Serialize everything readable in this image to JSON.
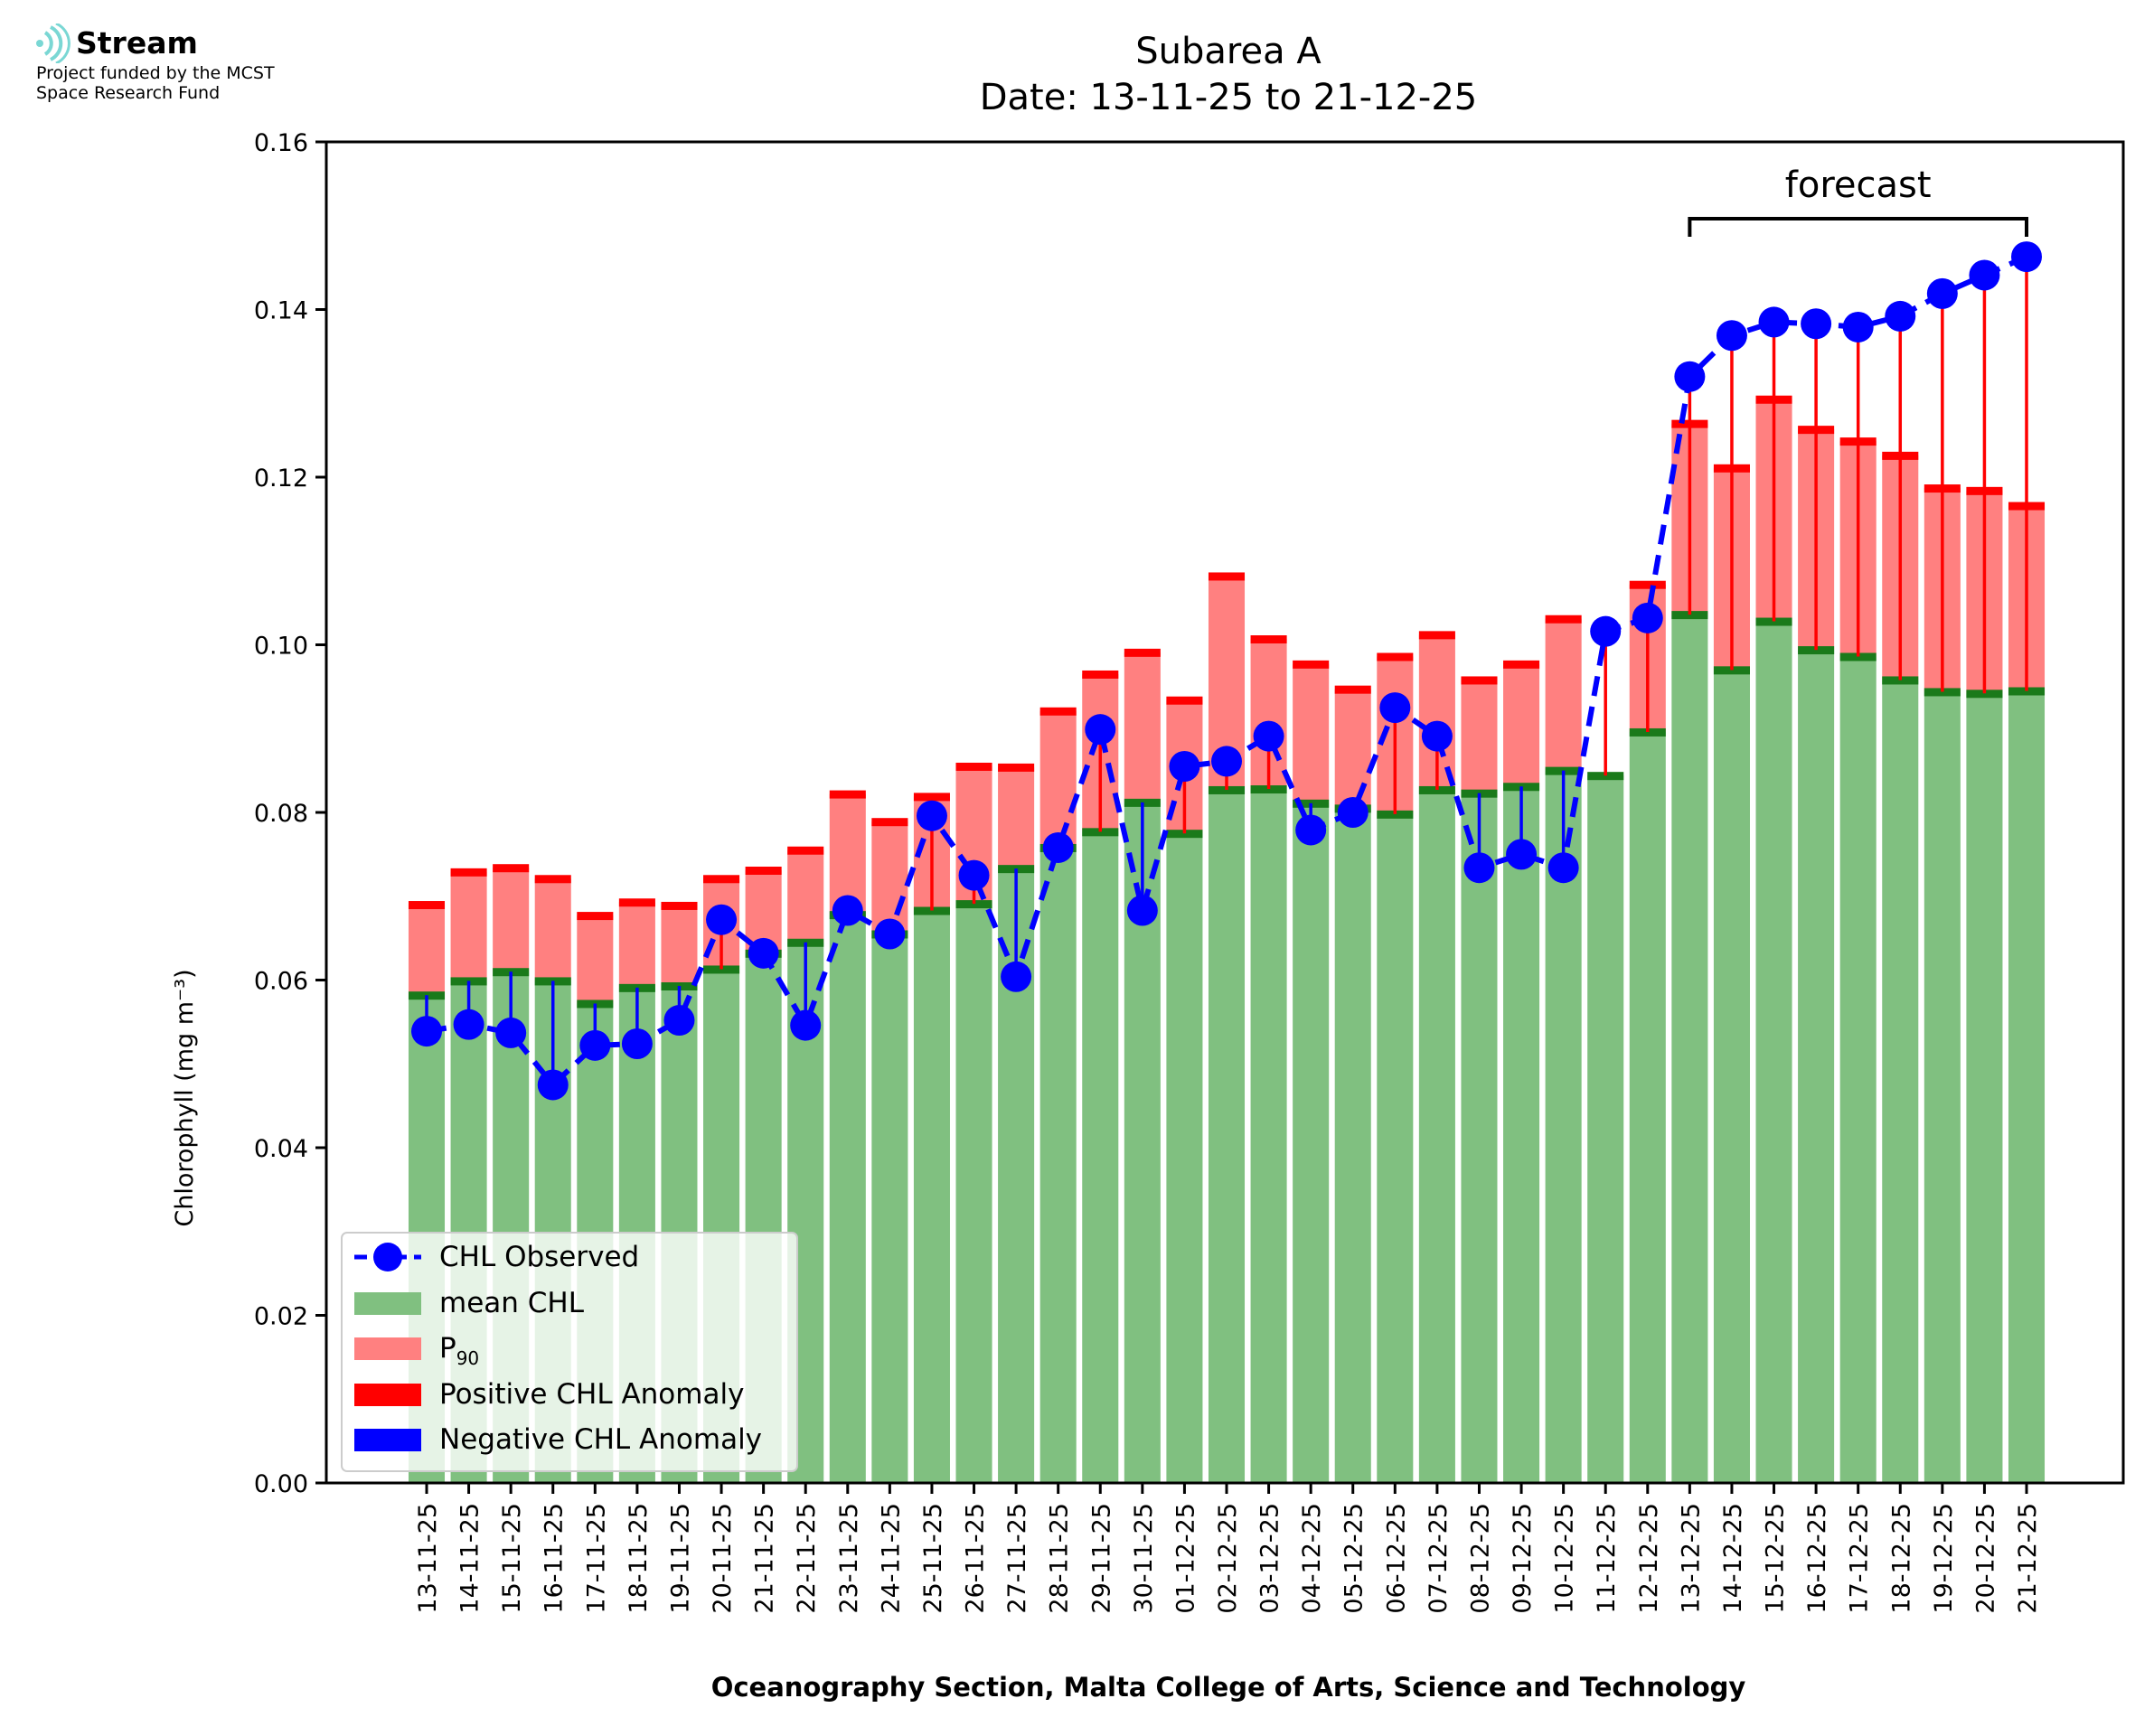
{
  "logo": {
    "name": "Stream",
    "line1": "Project funded by the MCST",
    "line2": "Space Research Fund"
  },
  "colors": {
    "mean": "#80c080",
    "p90": "#ff8080",
    "mean_cap": "#1a7a1a",
    "p90_cap": "#ff0000",
    "observed": "#0000ff",
    "positive": "#ff0000",
    "negative": "#0000ff",
    "logo": "#7ad7d4"
  },
  "chart_data": {
    "type": "bar",
    "title": "Subarea A",
    "subtitle": "Date: 13-11-25 to 21-12-25",
    "ylabel": "Chlorophyll (mg m⁻³)",
    "xlabel": "Oceanography Section, Malta College of Arts, Science and Technology",
    "ylim": [
      0,
      0.16
    ],
    "yticks": [
      "0.00",
      "0.02",
      "0.04",
      "0.06",
      "0.08",
      "0.10",
      "0.12",
      "0.14",
      "0.16"
    ],
    "annotation": "forecast",
    "forecast_range": [
      "13-12-25",
      "21-12-25"
    ],
    "legend_position": "lower-left",
    "categories": [
      "13-11-25",
      "14-11-25",
      "15-11-25",
      "16-11-25",
      "17-11-25",
      "18-11-25",
      "19-11-25",
      "20-11-25",
      "21-11-25",
      "22-11-25",
      "23-11-25",
      "24-11-25",
      "25-11-25",
      "26-11-25",
      "27-11-25",
      "28-11-25",
      "29-11-25",
      "30-11-25",
      "01-12-25",
      "02-12-25",
      "03-12-25",
      "04-12-25",
      "05-12-25",
      "06-12-25",
      "07-12-25",
      "08-12-25",
      "09-12-25",
      "10-12-25",
      "11-12-25",
      "12-12-25",
      "13-12-25",
      "14-12-25",
      "15-12-25",
      "16-12-25",
      "17-12-25",
      "18-12-25",
      "19-12-25",
      "20-12-25",
      "21-12-25"
    ],
    "series": [
      {
        "name": "CHL Observed",
        "values": [
          0.0539,
          0.0547,
          0.0537,
          0.0475,
          0.0522,
          0.0524,
          0.0552,
          0.0672,
          0.0632,
          0.0546,
          0.0683,
          0.0655,
          0.0796,
          0.0725,
          0.0604,
          0.0758,
          0.0899,
          0.0683,
          0.0855,
          0.0861,
          0.0891,
          0.0779,
          0.08,
          0.0925,
          0.0891,
          0.0734,
          0.075,
          0.0734,
          0.1016,
          0.1032,
          0.132,
          0.1369,
          0.1385,
          0.1383,
          0.1379,
          0.1392,
          0.1419,
          0.1441,
          0.1463
        ]
      },
      {
        "name": "mean CHL",
        "values": [
          0.0582,
          0.0599,
          0.061,
          0.0599,
          0.0572,
          0.0591,
          0.0593,
          0.0613,
          0.0632,
          0.0645,
          0.0678,
          0.0655,
          0.0683,
          0.0691,
          0.0733,
          0.0758,
          0.0777,
          0.0812,
          0.0775,
          0.0827,
          0.0828,
          0.0811,
          0.0805,
          0.0798,
          0.0827,
          0.0823,
          0.0831,
          0.085,
          0.0844,
          0.0896,
          0.1036,
          0.097,
          0.1028,
          0.0994,
          0.0986,
          0.0958,
          0.0944,
          0.0942,
          0.0945
        ]
      },
      {
        "name": "P90",
        "values": [
          0.069,
          0.0729,
          0.0734,
          0.0721,
          0.0677,
          0.0693,
          0.0689,
          0.0721,
          0.0731,
          0.0755,
          0.0822,
          0.0789,
          0.0819,
          0.0855,
          0.0854,
          0.0921,
          0.0965,
          0.0991,
          0.0934,
          0.1082,
          0.1007,
          0.0977,
          0.0947,
          0.0986,
          0.1012,
          0.0958,
          0.0977,
          0.1031,
          0.0844,
          0.1072,
          0.1264,
          0.1211,
          0.1293,
          0.1257,
          0.1243,
          0.1226,
          0.1187,
          0.1184,
          0.1166
        ]
      }
    ],
    "legend": [
      "CHL Observed",
      "mean CHL",
      "P",
      "90",
      "Positive CHL Anomaly",
      "Negative CHL Anomaly"
    ]
  }
}
